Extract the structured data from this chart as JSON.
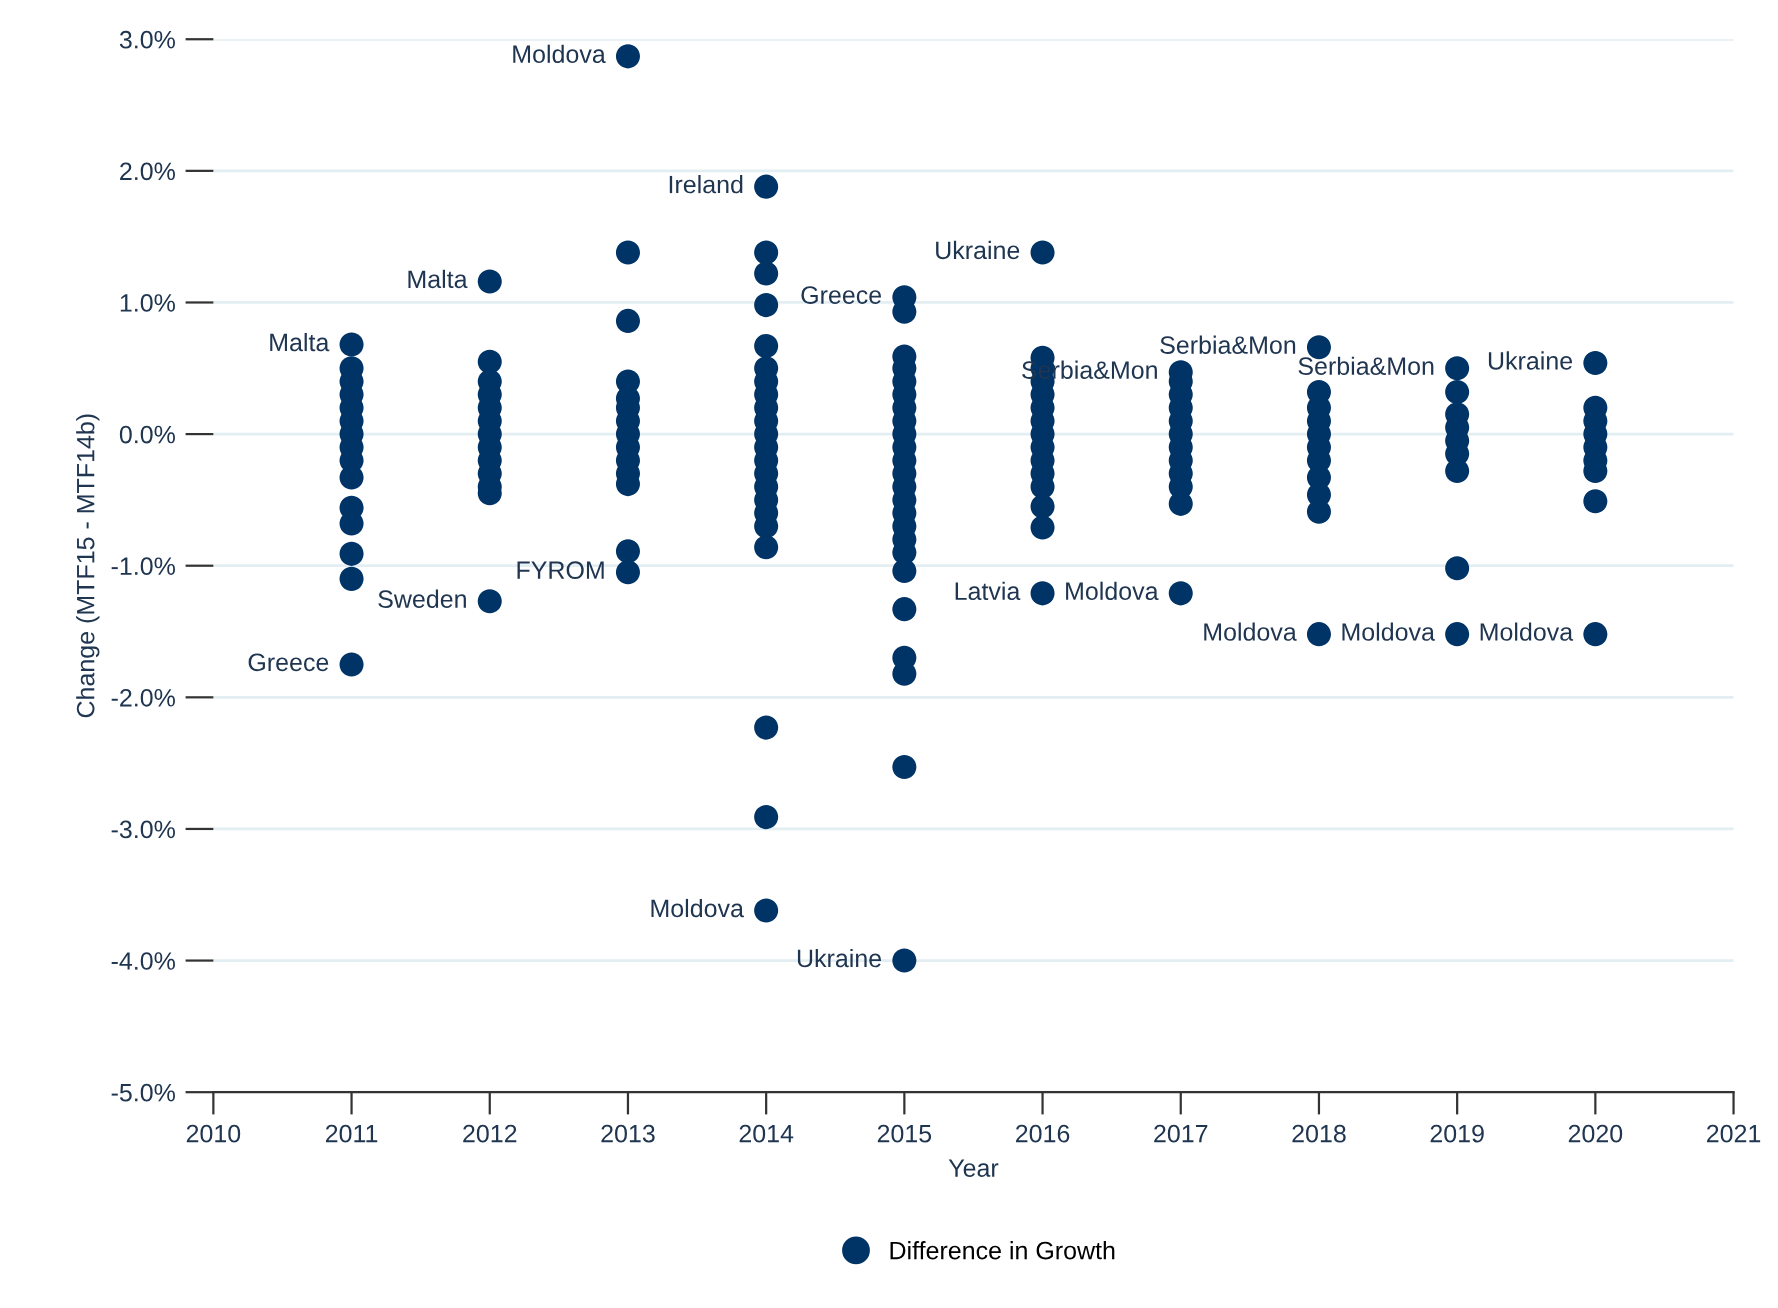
{
  "chart_data": {
    "type": "scatter",
    "xlabel": "Year",
    "ylabel": "Change (MTF15 - MTF14b)",
    "xlim": [
      2010,
      2021
    ],
    "xticks": [
      2010,
      2011,
      2012,
      2013,
      2014,
      2015,
      2016,
      2017,
      2018,
      2019,
      2020,
      2021
    ],
    "ylim": [
      -5.0,
      3.0
    ],
    "yticks": [
      {
        "value": 3,
        "label": "3.0%"
      },
      {
        "value": 2,
        "label": "2.0%"
      },
      {
        "value": 1,
        "label": "1.0%"
      },
      {
        "value": 0,
        "label": "0.0%"
      },
      {
        "value": -1,
        "label": "-1.0%"
      },
      {
        "value": -2,
        "label": "-2.0%"
      },
      {
        "value": -3,
        "label": "-3.0%"
      },
      {
        "value": -4,
        "label": "-4.0%"
      },
      {
        "value": -5,
        "label": "-5.0%"
      }
    ],
    "grid": "y",
    "legend": "bottom",
    "marker": "circle",
    "series": [
      {
        "name": "Difference in Growth",
        "color": "#003366",
        "x": [
          2011,
          2011,
          2011,
          2011,
          2011,
          2011,
          2011,
          2011,
          2011,
          2011,
          2011,
          2011,
          2011,
          2011,
          2011,
          2012,
          2012,
          2012,
          2012,
          2012,
          2012,
          2012,
          2012,
          2012,
          2012,
          2012,
          2012,
          2012,
          2013,
          2013,
          2013,
          2013,
          2013,
          2013,
          2013,
          2013,
          2013,
          2013,
          2013,
          2013,
          2013,
          2013,
          2014,
          2014,
          2014,
          2014,
          2014,
          2014,
          2014,
          2014,
          2014,
          2014,
          2014,
          2014,
          2014,
          2014,
          2014,
          2014,
          2014,
          2014,
          2014,
          2014,
          2014,
          2014,
          2015,
          2015,
          2015,
          2015,
          2015,
          2015,
          2015,
          2015,
          2015,
          2015,
          2015,
          2015,
          2015,
          2015,
          2015,
          2015,
          2015,
          2015,
          2015,
          2015,
          2015,
          2015,
          2015,
          2015,
          2016,
          2016,
          2016,
          2016,
          2016,
          2016,
          2016,
          2016,
          2016,
          2016,
          2016,
          2016,
          2016,
          2016,
          2016,
          2017,
          2017,
          2017,
          2017,
          2017,
          2017,
          2017,
          2017,
          2017,
          2017,
          2017,
          2017,
          2018,
          2018,
          2018,
          2018,
          2018,
          2018,
          2018,
          2018,
          2018,
          2018,
          2018,
          2019,
          2019,
          2019,
          2019,
          2019,
          2019,
          2019,
          2019,
          2019,
          2020,
          2020,
          2020,
          2020,
          2020,
          2020,
          2020,
          2020,
          2020
        ],
        "values": [
          0.68,
          0.5,
          0.4,
          0.3,
          0.2,
          0.1,
          0,
          -0.1,
          -0.2,
          -0.33,
          -0.56,
          -0.68,
          -0.91,
          -1.1,
          -1.75,
          1.16,
          0.55,
          0.4,
          0.3,
          0.2,
          0.1,
          0,
          -0.1,
          -0.2,
          -0.3,
          -0.4,
          -0.45,
          -1.27,
          2.87,
          1.38,
          0.86,
          0.4,
          0.27,
          0.2,
          0.1,
          0,
          -0.1,
          -0.2,
          -0.3,
          -0.38,
          -0.89,
          -1.05,
          1.88,
          1.38,
          1.22,
          0.98,
          0.67,
          0.5,
          0.4,
          0.3,
          0.2,
          0.1,
          0,
          -0.1,
          -0.2,
          -0.3,
          -0.4,
          -0.5,
          -0.6,
          -0.7,
          -0.86,
          -2.23,
          -2.91,
          -3.62,
          1.04,
          0.93,
          0.59,
          0.5,
          0.4,
          0.3,
          0.2,
          0.1,
          0,
          -0.1,
          -0.2,
          -0.3,
          -0.4,
          -0.5,
          -0.6,
          -0.7,
          -0.8,
          -0.9,
          -1.04,
          -1.33,
          -1.7,
          -1.82,
          -2.53,
          -4.0,
          1.38,
          0.58,
          0.5,
          0.4,
          0.3,
          0.2,
          0.1,
          0,
          -0.1,
          -0.2,
          -0.3,
          -0.4,
          -0.55,
          -0.71,
          -1.21,
          0.47,
          0.4,
          0.3,
          0.2,
          0.1,
          0,
          -0.1,
          -0.2,
          -0.3,
          -0.4,
          -0.53,
          -1.21,
          0.66,
          0.32,
          0.2,
          0.1,
          0,
          -0.1,
          -0.2,
          -0.33,
          -0.46,
          -0.59,
          -1.52,
          0.5,
          0.32,
          0.15,
          0.05,
          -0.05,
          -0.15,
          -0.28,
          -1.02,
          -1.52,
          0.54,
          0.2,
          0.1,
          0,
          -0.1,
          -0.2,
          -0.28,
          -0.51,
          -1.52
        ]
      }
    ],
    "annotations": [
      {
        "text": "Moldova",
        "x": 2013,
        "y": 2.87
      },
      {
        "text": "Ireland",
        "x": 2014,
        "y": 1.88
      },
      {
        "text": "Malta",
        "x": 2012,
        "y": 1.16
      },
      {
        "text": "Malta",
        "x": 2011,
        "y": 0.68
      },
      {
        "text": "Ukraine",
        "x": 2016,
        "y": 1.38
      },
      {
        "text": "Greece",
        "x": 2015,
        "y": 1.04
      },
      {
        "text": "Serbia&Mon",
        "x": 2017,
        "y": 0.47
      },
      {
        "text": "Serbia&Mon",
        "x": 2018,
        "y": 0.66
      },
      {
        "text": "Serbia&Mon",
        "x": 2019,
        "y": 0.5
      },
      {
        "text": "Ukraine",
        "x": 2020,
        "y": 0.54
      },
      {
        "text": "Sweden",
        "x": 2012,
        "y": -1.27
      },
      {
        "text": "FYROM",
        "x": 2013,
        "y": -1.05
      },
      {
        "text": "Greece",
        "x": 2011,
        "y": -1.75
      },
      {
        "text": "Latvia",
        "x": 2016,
        "y": -1.21
      },
      {
        "text": "Moldova",
        "x": 2017,
        "y": -1.21
      },
      {
        "text": "Moldova",
        "x": 2018,
        "y": -1.52
      },
      {
        "text": "Moldova",
        "x": 2019,
        "y": -1.52
      },
      {
        "text": "Moldova",
        "x": 2020,
        "y": -1.52
      },
      {
        "text": "Moldova",
        "x": 2014,
        "y": -3.62
      },
      {
        "text": "Ukraine",
        "x": 2015,
        "y": -4.0
      }
    ]
  }
}
